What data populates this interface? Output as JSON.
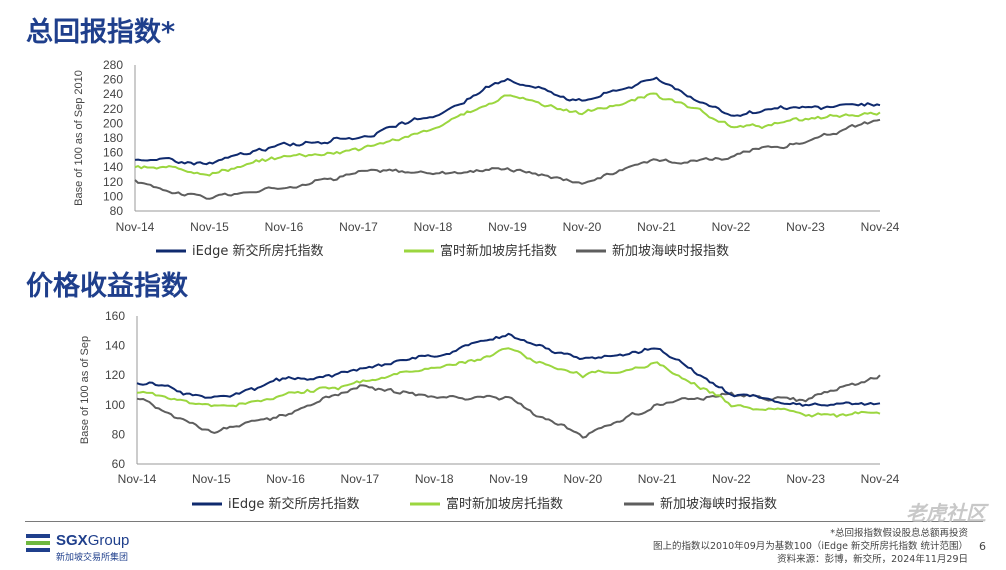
{
  "colors": {
    "blue": "#0f2a6e",
    "green": "#9bd63f",
    "grey": "#5e5e5e",
    "title": "#1f3f8c"
  },
  "chart_data": [
    {
      "type": "line",
      "title": "总回报指数*",
      "ylabel": "Base of 100 as of Sep 2010",
      "xlabel": "",
      "x": [
        "Nov-14",
        "Nov-15",
        "Nov-16",
        "Nov-17",
        "Nov-18",
        "Nov-19",
        "Nov-20",
        "Nov-21",
        "Nov-22",
        "Nov-23",
        "Nov-24"
      ],
      "ylim": [
        80,
        280
      ],
      "yticks": [
        "80",
        "100",
        "120",
        "140",
        "160",
        "180",
        "200",
        "220",
        "240",
        "260",
        "280"
      ],
      "grid": false,
      "legend": "bottom",
      "series": [
        {
          "name": "iEdge 新交所房托指数",
          "color": "blue",
          "values": [
            152,
            145,
            170,
            182,
            208,
            262,
            232,
            262,
            212,
            220,
            225
          ]
        },
        {
          "name": "富时新加坡房托指数",
          "color": "green",
          "values": [
            140,
            134,
            155,
            166,
            190,
            240,
            214,
            240,
            195,
            203,
            215
          ]
        },
        {
          "name": "新加坡海峡时报指数",
          "color": "grey",
          "values": [
            120,
            98,
            113,
            135,
            132,
            140,
            120,
            150,
            155,
            175,
            205
          ]
        }
      ]
    },
    {
      "type": "line",
      "title": "价格收益指数",
      "ylabel": "Base of 100 as of Sep",
      "xlabel": "",
      "x": [
        "Nov-14",
        "Nov-15",
        "Nov-16",
        "Nov-17",
        "Nov-18",
        "Nov-19",
        "Nov-20",
        "Nov-21",
        "Nov-22",
        "Nov-23",
        "Nov-24"
      ],
      "ylim": [
        60,
        160
      ],
      "yticks": [
        "60",
        "80",
        "100",
        "120",
        "140",
        "160"
      ],
      "grid": false,
      "legend": "bottom",
      "series": [
        {
          "name": "iEdge 新交所房托指数",
          "color": "blue",
          "values": [
            115,
            105,
            116,
            123,
            133,
            148,
            128,
            138,
            108,
            100,
            101
          ]
        },
        {
          "name": "富时新加坡房托指数",
          "color": "green",
          "values": [
            108,
            98,
            106,
            115,
            123,
            138,
            120,
            128,
            100,
            93,
            94
          ]
        },
        {
          "name": "新加坡海峡时报指数",
          "color": "grey",
          "values": [
            105,
            82,
            93,
            113,
            105,
            105,
            78,
            100,
            105,
            103,
            120
          ]
        }
      ]
    }
  ],
  "footer": {
    "logo_name": "SGX",
    "logo_name_suffix": "Group",
    "logo_sub": "新加坡交易所集团",
    "note1": "*总回报指数假设股息总额再投资",
    "note2": "图上的指数以2010年09月为基数100（iEdge 新交所房托指数 统计范围）",
    "note3": "资料来源：彭博，新交所，2024年11月29日",
    "page": "6",
    "watermark": "老虎社区"
  }
}
